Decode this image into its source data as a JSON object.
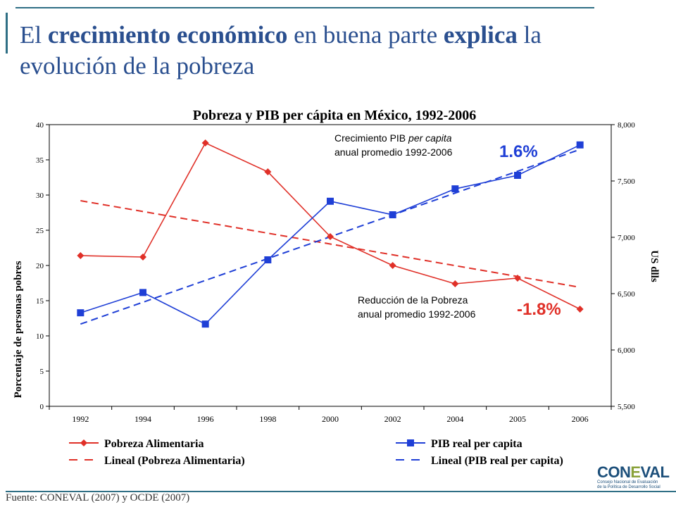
{
  "slide": {
    "title_parts": [
      "El ",
      "crecimiento económico",
      " en buena parte ",
      "explica",
      " la evolución de la pobreza"
    ],
    "source": "Fuente: CONEVAL (2007) y OCDE (2007)",
    "logo_text_a": "CON",
    "logo_text_l": "E",
    "logo_text_b": "VAL",
    "logo_sub_1": "Consejo Nacional de Evaluación",
    "logo_sub_2": "de la Política de Desarrollo Social"
  },
  "chart_data": {
    "type": "line",
    "title": "Pobreza  y PIB per cápita en México, 1992-2006",
    "ylabel": "Porcentaje de personas pobres",
    "y2label": "US dlls",
    "categories": [
      "1992",
      "1994",
      "1996",
      "1998",
      "2000",
      "2002",
      "2004",
      "2005",
      "2006"
    ],
    "ylim": [
      0,
      40
    ],
    "yticks": [
      "0",
      "5",
      "10",
      "15",
      "20",
      "25",
      "30",
      "35",
      "40"
    ],
    "y2lim": [
      5500,
      8000
    ],
    "y2ticks": [
      "5,500",
      "6,000",
      "6,500",
      "7,000",
      "7,500",
      "8,000"
    ],
    "series": [
      {
        "name": "Pobreza Alimentaria",
        "axis": "left",
        "color": "#e03028",
        "marker": "diamond",
        "values": [
          21.4,
          21.2,
          37.4,
          33.3,
          24.1,
          20.0,
          17.4,
          18.2,
          13.8
        ]
      },
      {
        "name": "PIB real per capita",
        "axis": "right",
        "color": "#1f3fd6",
        "marker": "square",
        "values": [
          6330,
          6510,
          6230,
          6800,
          7320,
          7200,
          7430,
          7550,
          7820
        ]
      }
    ],
    "trendlines": [
      {
        "name": "Lineal (Pobreza Alimentaria)",
        "axis": "left",
        "color": "#e03028",
        "from": 29.2,
        "to": 16.9
      },
      {
        "name": "Lineal (PIB real per capita)",
        "axis": "right",
        "color": "#1f3fd6",
        "from": 6230,
        "to": 7780
      }
    ],
    "annotations": [
      {
        "text1": "Crecimiento PIB ",
        "italic": "per capita",
        "text2": "anual promedio 1992-2006",
        "value": "1.6%",
        "value_color": "#1f3fd6"
      },
      {
        "text1": "Reducción de la Pobreza",
        "italic": "",
        "text2": "anual promedio 1992-2006",
        "value": "-1.8%",
        "value_color": "#e03028"
      }
    ],
    "grid": false,
    "legend_position": "bottom"
  }
}
